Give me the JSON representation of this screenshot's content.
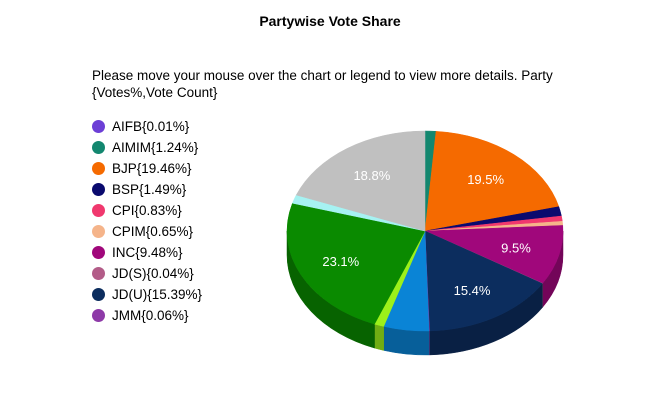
{
  "title": "Partywise Vote Share",
  "instructions": "Please move your mouse over the chart or legend to view more details. Party {Votes%,Vote Count}",
  "legend": [
    {
      "label": "AIFB{0.01%}",
      "color": "#6c3fd6"
    },
    {
      "label": "AIMIM{1.24%}",
      "color": "#13876f"
    },
    {
      "label": "BJP{19.46%}",
      "color": "#f56a00"
    },
    {
      "label": "BSP{1.49%}",
      "color": "#0a0a6e"
    },
    {
      "label": "CPI{0.83%}",
      "color": "#f0386e"
    },
    {
      "label": "CPIM{0.65%}",
      "color": "#f5b48a"
    },
    {
      "label": "INC{9.48%}",
      "color": "#a0077b"
    },
    {
      "label": "JD(S){0.04%}",
      "color": "#b35c88"
    },
    {
      "label": "JD(U){15.39%}",
      "color": "#0c2d5e"
    },
    {
      "label": "JMM{0.06%}",
      "color": "#8e3aa8"
    }
  ],
  "chart_data": {
    "type": "pie",
    "title": "Partywise Vote Share",
    "slices": [
      {
        "name": "AIFB",
        "value": 0.01,
        "color": "#6c3fd6"
      },
      {
        "name": "AIMIM",
        "value": 1.24,
        "color": "#13876f"
      },
      {
        "name": "BJP",
        "value": 19.46,
        "color": "#f56a00",
        "label": "19.5%"
      },
      {
        "name": "BSP",
        "value": 1.49,
        "color": "#0a0a6e"
      },
      {
        "name": "CPI",
        "value": 0.83,
        "color": "#f0386e"
      },
      {
        "name": "CPIM",
        "value": 0.65,
        "color": "#f5b48a"
      },
      {
        "name": "INC",
        "value": 9.48,
        "color": "#a0077b",
        "label": "9.5%"
      },
      {
        "name": "JD(S)",
        "value": 0.04,
        "color": "#b35c88"
      },
      {
        "name": "JD(U)",
        "value": 15.39,
        "color": "#0c2d5e",
        "label": "15.4%"
      },
      {
        "name": "JMM",
        "value": 0.06,
        "color": "#8e3aa8"
      },
      {
        "name": "",
        "value": 5.2,
        "color": "#0a84d6"
      },
      {
        "name": "",
        "value": 1.1,
        "color": "#9cf01a"
      },
      {
        "name": "",
        "value": 23.1,
        "color": "#0a8a00",
        "label": "23.1%"
      },
      {
        "name": "",
        "value": 1.35,
        "color": "#a6f2f2"
      },
      {
        "name": "",
        "value": 18.8,
        "color": "#c0c0c0",
        "label": "18.8%"
      }
    ],
    "legend_placement": "left"
  }
}
